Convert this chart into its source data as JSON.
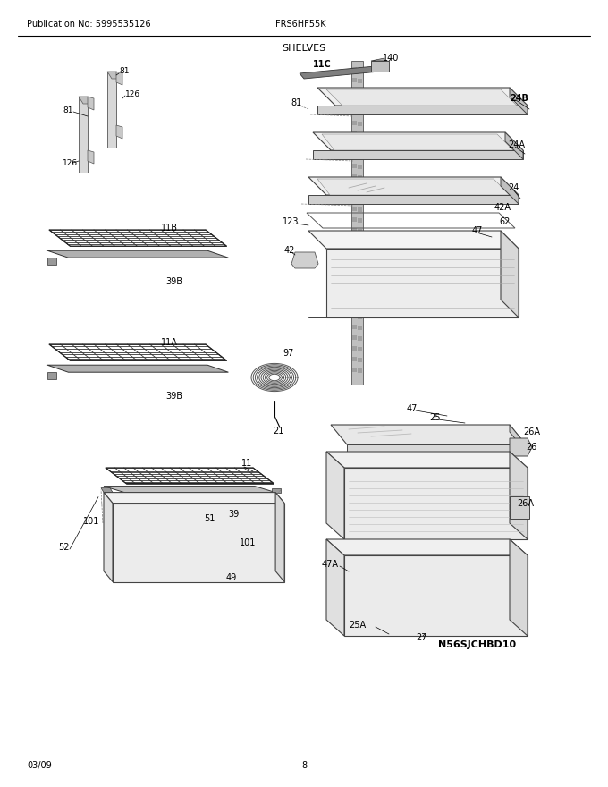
{
  "title": "SHELVES",
  "pub_no": "Publication No: 5995535126",
  "model": "FRS6HF55K",
  "date": "03/09",
  "page": "8",
  "image_id": "N56SJCHBD10",
  "bg_color": "#ffffff",
  "line_color": "#000000",
  "figsize": [
    6.8,
    8.8
  ],
  "dpi": 100
}
